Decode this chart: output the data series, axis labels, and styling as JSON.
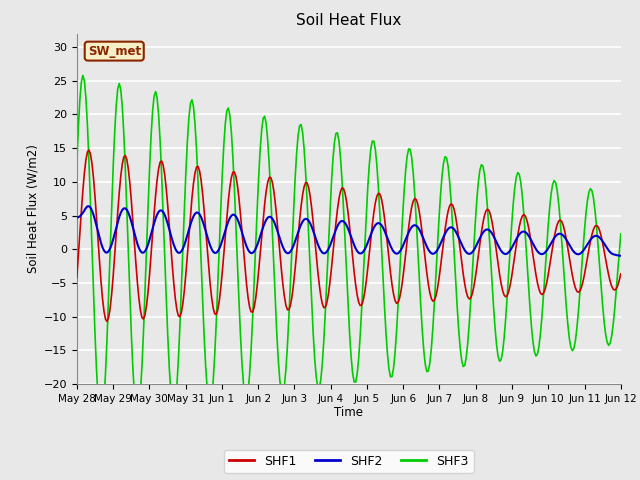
{
  "title": "Soil Heat Flux",
  "ylabel": "Soil Heat Flux (W/m2)",
  "xlabel": "Time",
  "ylim": [
    -20,
    32
  ],
  "yticks": [
    -20,
    -15,
    -10,
    -5,
    0,
    5,
    10,
    15,
    20,
    25,
    30
  ],
  "background_color": "#e8e8e8",
  "plot_bg_color": "#e8e8e8",
  "grid_color": "#ffffff",
  "annotation_text": "SW_met",
  "annotation_bg": "#f5f0c8",
  "annotation_border": "#8b2500",
  "line_colors": {
    "SHF1": "#cc0000",
    "SHF2": "#0000cc",
    "SHF3": "#00cc00"
  },
  "line_width": 1.2,
  "tick_labels": [
    "May 28",
    "May 29",
    "May 30",
    "May 31",
    "Jun 1",
    "Jun 2",
    "Jun 3",
    "Jun 4",
    "Jun 5",
    "Jun 6",
    "Jun 7",
    "Jun 8",
    "Jun 9",
    "Jun 10",
    "Jun 11",
    "Jun 12"
  ]
}
